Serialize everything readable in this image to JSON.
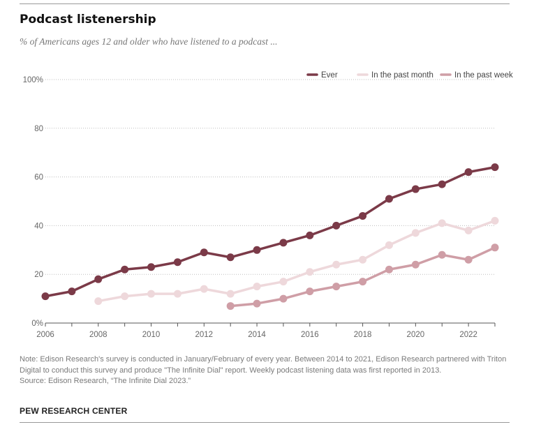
{
  "title": "Podcast listenership",
  "subtitle": "% of Americans ages 12 and older who have listened to a podcast ...",
  "note_lines": [
    "Note: Edison Research's survey is conducted in January/February of every year. Between 2014 to 2021, Edison Research partnered with Triton Digital to conduct this survey and produce \"The Infinite Dial\" report. Weekly podcast listening data was first reported in 2013.",
    "Source: Edison Research, “The Infinite Dial 2023.”"
  ],
  "brand": "PEW RESEARCH CENTER",
  "chart_data": {
    "type": "line",
    "title": "Podcast listenership",
    "xlabel": "",
    "ylabel": "",
    "ylim": [
      0,
      100
    ],
    "xlim": [
      2006,
      2023
    ],
    "y_ticks": [
      0,
      20,
      40,
      60,
      80,
      100
    ],
    "y_tick_labels": [
      "0%",
      "20",
      "40",
      "60",
      "80",
      "100%"
    ],
    "x_ticks": [
      2006,
      2008,
      2010,
      2012,
      2014,
      2016,
      2018,
      2020,
      2022
    ],
    "x_tick_labels": [
      "2006",
      "2008",
      "2010",
      "2012",
      "2014",
      "2016",
      "2018",
      "2020",
      "2022"
    ],
    "legend_position": "top-right",
    "series": [
      {
        "name": "Ever",
        "color": "#7b3a48",
        "x": [
          2006,
          2007,
          2008,
          2009,
          2010,
          2011,
          2012,
          2013,
          2014,
          2015,
          2016,
          2017,
          2018,
          2019,
          2020,
          2021,
          2022,
          2023
        ],
        "values": [
          11,
          13,
          18,
          22,
          23,
          25,
          29,
          27,
          30,
          33,
          36,
          40,
          44,
          51,
          55,
          57,
          62,
          64
        ]
      },
      {
        "name": "In the past month",
        "color": "#eed8db",
        "x": [
          2008,
          2009,
          2010,
          2011,
          2012,
          2013,
          2014,
          2015,
          2016,
          2017,
          2018,
          2019,
          2020,
          2021,
          2022,
          2023
        ],
        "values": [
          9,
          11,
          12,
          12,
          14,
          12,
          15,
          17,
          21,
          24,
          26,
          32,
          37,
          41,
          38,
          42
        ]
      },
      {
        "name": "In the past week",
        "color": "#cf9ea6",
        "x": [
          2013,
          2014,
          2015,
          2016,
          2017,
          2018,
          2019,
          2020,
          2021,
          2022,
          2023
        ],
        "values": [
          7,
          8,
          10,
          13,
          15,
          17,
          22,
          24,
          28,
          26,
          31
        ]
      }
    ]
  }
}
